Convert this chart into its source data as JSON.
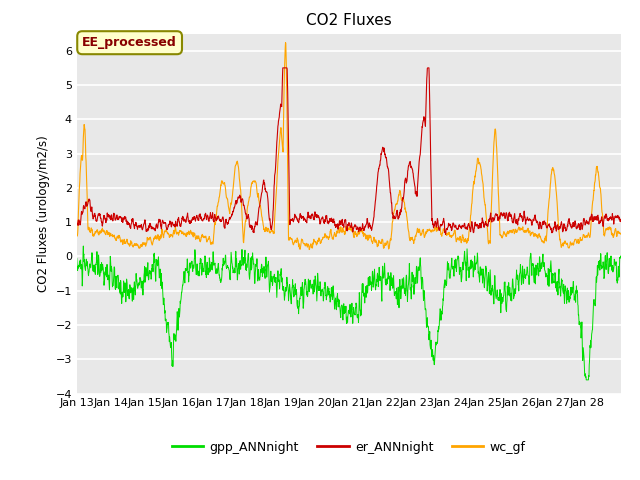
{
  "title": "CO2 Fluxes",
  "ylabel": "CO2 Fluxes (urology/m2/s)",
  "ylim": [
    -4.0,
    6.5
  ],
  "yticks": [
    -4.0,
    -3.0,
    -2.0,
    -1.0,
    0.0,
    1.0,
    2.0,
    3.0,
    4.0,
    5.0,
    6.0
  ],
  "xtick_labels": [
    "Jan 13",
    "Jan 14",
    "Jan 15",
    "Jan 16",
    "Jan 17",
    "Jan 18",
    "Jan 19",
    "Jan 20",
    "Jan 21",
    "Jan 22",
    "Jan 23",
    "Jan 24",
    "Jan 25",
    "Jan 26",
    "Jan 27",
    "Jan 28"
  ],
  "bg_color": "#e8e8e8",
  "fig_bg_color": "#ffffff",
  "grid_color": "#ffffff",
  "line_colors": {
    "gpp": "#00dd00",
    "er": "#cc0000",
    "wc": "#ffa500"
  },
  "legend_labels": [
    "gpp_ANNnight",
    "er_ANNnight",
    "wc_gf"
  ],
  "annotation_text": "EE_processed",
  "annotation_color": "#880000",
  "annotation_bg": "#ffffcc",
  "annotation_border": "#888800",
  "n_points": 2000,
  "seed": 42
}
